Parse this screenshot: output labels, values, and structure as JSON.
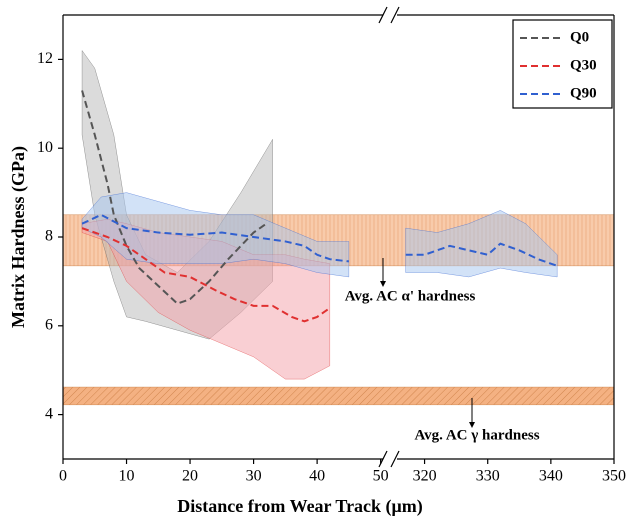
{
  "chart_data": {
    "type": "line",
    "x_label": "Distance from Wear Track (μm)",
    "y_label": "Matrix Hardness (GPa)",
    "ylim": [
      3,
      13
    ],
    "yticks": [
      4,
      6,
      8,
      10,
      12
    ],
    "x_segments": [
      {
        "xlim": [
          0,
          51
        ],
        "xticks": [
          0,
          10,
          20,
          30,
          40,
          50
        ]
      },
      {
        "xlim": [
          315,
          350
        ],
        "xticks": [
          320,
          330,
          340,
          350
        ]
      }
    ],
    "legend": "upper right",
    "reference_bands": [
      {
        "label": "Avg. AC α' hardness",
        "ymin": 7.35,
        "ymax": 8.5,
        "color": "#f7c29c"
      },
      {
        "label": "Avg. AC γ hardness",
        "ymin": 4.22,
        "ymax": 4.62,
        "color": "#f2a36c"
      }
    ],
    "series": [
      {
        "name": "Q0",
        "color": "#555555",
        "band_color": "#b8b8b8",
        "x": [
          3,
          5,
          7,
          8,
          10,
          12,
          15,
          18,
          20,
          23,
          26,
          28,
          30,
          32
        ],
        "values": [
          11.3,
          10.3,
          9.2,
          8.5,
          7.8,
          7.3,
          6.9,
          6.5,
          6.6,
          7.0,
          7.5,
          7.8,
          8.1,
          8.3
        ],
        "bands": [
          {
            "x": [
              3,
              5,
              8,
              10,
              13,
              18,
              23,
              28,
              33
            ],
            "upper": [
              12.2,
              11.8,
              10.3,
              8.5,
              7.6,
              7.2,
              7.9,
              9.0,
              10.2
            ],
            "lower": [
              10.3,
              8.5,
              7.0,
              6.2,
              6.1,
              5.9,
              5.7,
              6.3,
              7.0
            ]
          }
        ]
      },
      {
        "name": "Q30",
        "color": "#e03030",
        "band_color": "#f4a0a8",
        "x": [
          3,
          7,
          10,
          13,
          16,
          20,
          24,
          27,
          30,
          33,
          36,
          38,
          40,
          42
        ],
        "values": [
          8.2,
          8.0,
          7.8,
          7.5,
          7.2,
          7.1,
          6.8,
          6.6,
          6.45,
          6.45,
          6.2,
          6.1,
          6.2,
          6.4
        ],
        "bands": [
          {
            "x": [
              3,
              7,
              10,
              15,
              20,
              25,
              30,
              35,
              38,
              42
            ],
            "upper": [
              8.3,
              8.4,
              8.3,
              8.1,
              8.0,
              7.9,
              7.6,
              7.6,
              7.5,
              7.4
            ],
            "lower": [
              8.1,
              7.9,
              7.0,
              6.3,
              5.9,
              5.6,
              5.3,
              4.8,
              4.8,
              5.1
            ]
          }
        ]
      },
      {
        "name": "Q90",
        "color": "#3060d0",
        "band_color": "#a6c6f0",
        "x": [
          3,
          6,
          10,
          15,
          20,
          25,
          30,
          35,
          38,
          40,
          42,
          45,
          null,
          317,
          320,
          324,
          327,
          330,
          332,
          335,
          338,
          341
        ],
        "values": [
          8.3,
          8.5,
          8.2,
          8.1,
          8.05,
          8.1,
          8.0,
          7.9,
          7.8,
          7.6,
          7.5,
          7.45,
          null,
          7.6,
          7.6,
          7.8,
          7.7,
          7.6,
          7.85,
          7.7,
          7.5,
          7.35
        ],
        "bands": [
          {
            "x": [
              3,
              6,
              10,
              15,
              20,
              25,
              30,
              35,
              40,
              45
            ],
            "upper": [
              8.4,
              8.9,
              9.0,
              8.8,
              8.6,
              8.5,
              8.5,
              8.2,
              7.9,
              7.9
            ],
            "lower": [
              8.2,
              8.0,
              7.5,
              7.4,
              7.4,
              7.4,
              7.5,
              7.4,
              7.2,
              7.1
            ]
          },
          {
            "x": [
              317,
              322,
              327,
              332,
              336,
              341
            ],
            "upper": [
              8.2,
              8.1,
              8.3,
              8.6,
              8.3,
              7.6
            ],
            "lower": [
              7.2,
              7.2,
              7.1,
              7.3,
              7.2,
              7.1
            ]
          }
        ]
      }
    ]
  }
}
